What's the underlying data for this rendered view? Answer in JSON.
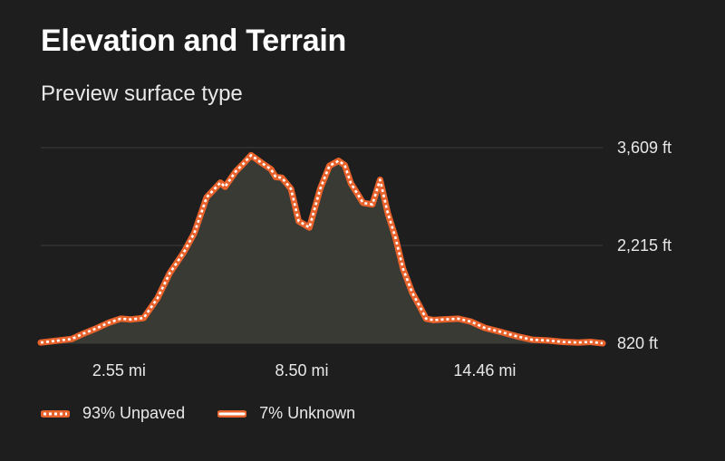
{
  "title": "Elevation and Terrain",
  "subtitle": "Preview surface type",
  "colors": {
    "background": "#1e1e1e",
    "area_fill": "#3a3a34",
    "line_orange": "#e8622c",
    "line_white": "#ffffff",
    "grid": "#3c3c3c"
  },
  "legend": [
    {
      "label": "93% Unpaved",
      "style": "dashed",
      "icon": "dashed-orange-line-icon"
    },
    {
      "label": "7% Unknown",
      "style": "solid",
      "icon": "solid-orange-line-icon"
    }
  ],
  "chart_data": {
    "type": "area",
    "xlabel": "",
    "ylabel": "",
    "xlim": [
      0,
      18.3
    ],
    "ylim": [
      820,
      3609
    ],
    "x_ticks": [
      {
        "value": 2.55,
        "label": "2.55 mi"
      },
      {
        "value": 8.5,
        "label": "8.50 mi"
      },
      {
        "value": 14.46,
        "label": "14.46 mi"
      }
    ],
    "y_ticks": [
      {
        "value": 3609,
        "label": "3,609 ft"
      },
      {
        "value": 2215,
        "label": "2,215 ft"
      },
      {
        "value": 820,
        "label": "820 ft"
      }
    ],
    "grid": true,
    "series": [
      {
        "name": "93% Unpaved",
        "x": [
          0.0,
          0.6,
          1.0,
          1.4,
          1.8,
          2.2,
          2.6,
          2.95,
          3.35,
          3.8,
          4.2,
          4.65,
          5.0,
          5.4,
          5.85,
          6.0,
          6.35,
          6.6,
          6.85,
          7.2,
          7.5,
          7.65,
          7.85,
          8.15,
          8.4,
          8.75,
          9.1,
          9.4,
          9.7,
          9.9,
          10.1,
          10.5,
          10.8,
          11.05,
          11.3,
          11.55,
          11.8,
          12.1,
          12.35,
          12.55,
          12.8,
          13.1,
          13.6,
          14.0,
          14.46,
          15.0,
          15.5,
          16.0,
          16.5,
          17.0,
          17.5,
          17.9,
          18.3
        ],
        "y": [
          830,
          860,
          880,
          960,
          1030,
          1110,
          1170,
          1160,
          1180,
          1460,
          1820,
          2110,
          2390,
          2900,
          3110,
          3050,
          3270,
          3380,
          3500,
          3390,
          3300,
          3190,
          3180,
          3020,
          2560,
          2470,
          3020,
          3350,
          3420,
          3360,
          3100,
          2820,
          2800,
          3150,
          2680,
          2330,
          1880,
          1540,
          1340,
          1170,
          1150,
          1160,
          1170,
          1130,
          1040,
          980,
          920,
          870,
          860,
          840,
          830,
          840,
          820
        ]
      }
    ]
  }
}
